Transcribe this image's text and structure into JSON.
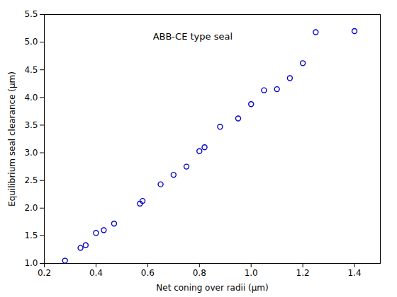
{
  "chart_data": {
    "type": "scatter",
    "x": [
      0.28,
      0.34,
      0.36,
      0.4,
      0.43,
      0.47,
      0.57,
      0.58,
      0.65,
      0.7,
      0.75,
      0.8,
      0.82,
      0.88,
      0.95,
      1.0,
      1.05,
      1.1,
      1.15,
      1.2,
      1.25,
      1.4
    ],
    "values": [
      1.05,
      1.28,
      1.33,
      1.55,
      1.6,
      1.72,
      2.08,
      2.13,
      2.43,
      2.6,
      2.75,
      3.03,
      3.1,
      3.47,
      3.62,
      3.88,
      4.13,
      4.15,
      4.35,
      4.62,
      5.18,
      5.2
    ],
    "color": "#0000CC",
    "marker": "circle",
    "xlabel": "Net coning over radii (μm)",
    "ylabel": "Equilibrium seal clearance (μm)",
    "xlim": [
      0.2,
      1.5
    ],
    "ylim": [
      1.0,
      5.5
    ],
    "xticks": [
      0.2,
      0.4,
      0.6,
      0.8,
      {
        "value": 1.0,
        "label": "1.0"
      },
      1.2,
      1.4
    ],
    "yticks": [
      {
        "value": 1.0,
        "label": "1.0"
      },
      1.5,
      {
        "value": 2.0,
        "label": "2.0"
      },
      2.5,
      {
        "value": 3.0,
        "label": "3.0"
      },
      3.5,
      {
        "value": 4.0,
        "label": "4.0"
      },
      4.5,
      {
        "value": 5.0,
        "label": "5.0"
      },
      5.5
    ],
    "annotations": [
      {
        "text": "ABB-CE type seal",
        "x": 0.62,
        "y": 5.05
      }
    ],
    "grid": false
  }
}
